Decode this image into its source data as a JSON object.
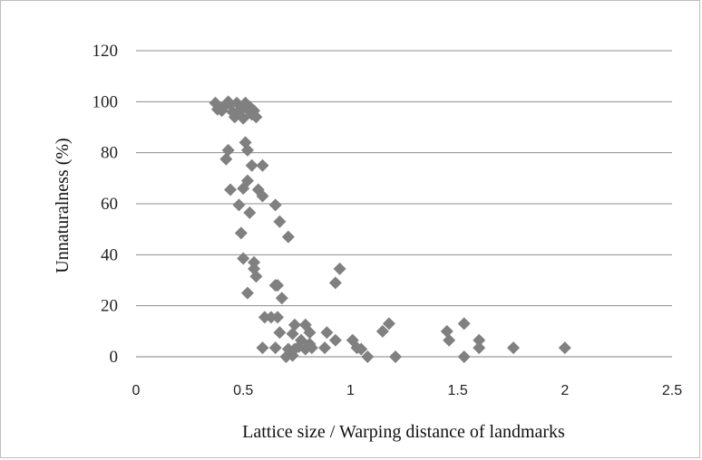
{
  "chart_data": {
    "type": "scatter",
    "title": "",
    "xlabel": "Lattice size / Warping distance of landmarks",
    "ylabel": "Unnaturalness (%)",
    "xlim": [
      0,
      2.5
    ],
    "ylim": [
      0,
      120
    ],
    "x_ticks": [
      "0",
      "0.5",
      "1",
      "1.5",
      "2",
      "2.5"
    ],
    "y_ticks": [
      "0",
      "20",
      "40",
      "60",
      "80",
      "100",
      "120"
    ],
    "grid": "horizontal",
    "legend": "none",
    "marker": "diamond",
    "marker_color": "#808080",
    "points": [
      {
        "x": 0.37,
        "y": 99.5
      },
      {
        "x": 0.38,
        "y": 97
      },
      {
        "x": 0.4,
        "y": 96.5
      },
      {
        "x": 0.41,
        "y": 98
      },
      {
        "x": 0.42,
        "y": 99
      },
      {
        "x": 0.43,
        "y": 100
      },
      {
        "x": 0.44,
        "y": 99
      },
      {
        "x": 0.45,
        "y": 96
      },
      {
        "x": 0.46,
        "y": 94
      },
      {
        "x": 0.47,
        "y": 99.5
      },
      {
        "x": 0.48,
        "y": 96
      },
      {
        "x": 0.49,
        "y": 97
      },
      {
        "x": 0.5,
        "y": 93.5
      },
      {
        "x": 0.51,
        "y": 99.5
      },
      {
        "x": 0.52,
        "y": 97
      },
      {
        "x": 0.53,
        "y": 98
      },
      {
        "x": 0.54,
        "y": 95
      },
      {
        "x": 0.55,
        "y": 96.5
      },
      {
        "x": 0.56,
        "y": 94
      },
      {
        "x": 0.51,
        "y": 84
      },
      {
        "x": 0.52,
        "y": 81
      },
      {
        "x": 0.43,
        "y": 81
      },
      {
        "x": 0.42,
        "y": 77.5
      },
      {
        "x": 0.54,
        "y": 75
      },
      {
        "x": 0.59,
        "y": 75
      },
      {
        "x": 0.52,
        "y": 69
      },
      {
        "x": 0.5,
        "y": 66
      },
      {
        "x": 0.44,
        "y": 65.5
      },
      {
        "x": 0.57,
        "y": 65.5
      },
      {
        "x": 0.59,
        "y": 63
      },
      {
        "x": 0.65,
        "y": 59.5
      },
      {
        "x": 0.48,
        "y": 59.5
      },
      {
        "x": 0.53,
        "y": 56.5
      },
      {
        "x": 0.67,
        "y": 53
      },
      {
        "x": 0.49,
        "y": 48.5
      },
      {
        "x": 0.71,
        "y": 47
      },
      {
        "x": 0.5,
        "y": 38.5
      },
      {
        "x": 0.55,
        "y": 37
      },
      {
        "x": 0.55,
        "y": 34.5
      },
      {
        "x": 0.56,
        "y": 31.5
      },
      {
        "x": 0.52,
        "y": 25
      },
      {
        "x": 0.65,
        "y": 28
      },
      {
        "x": 0.66,
        "y": 28
      },
      {
        "x": 0.68,
        "y": 23
      },
      {
        "x": 0.6,
        "y": 15.5
      },
      {
        "x": 0.63,
        "y": 15.5
      },
      {
        "x": 0.66,
        "y": 15.5
      },
      {
        "x": 0.95,
        "y": 34.5
      },
      {
        "x": 0.93,
        "y": 29
      },
      {
        "x": 0.74,
        "y": 12.5
      },
      {
        "x": 0.79,
        "y": 12.5
      },
      {
        "x": 0.81,
        "y": 9.5
      },
      {
        "x": 0.89,
        "y": 9.5
      },
      {
        "x": 0.67,
        "y": 9.5
      },
      {
        "x": 0.73,
        "y": 9
      },
      {
        "x": 0.77,
        "y": 6.5
      },
      {
        "x": 0.76,
        "y": 4
      },
      {
        "x": 0.81,
        "y": 5
      },
      {
        "x": 0.71,
        "y": 3
      },
      {
        "x": 0.74,
        "y": 3
      },
      {
        "x": 0.79,
        "y": 3
      },
      {
        "x": 0.59,
        "y": 3.5
      },
      {
        "x": 0.65,
        "y": 3.5
      },
      {
        "x": 0.7,
        "y": 0
      },
      {
        "x": 0.73,
        "y": 0.5
      },
      {
        "x": 0.82,
        "y": 3.5
      },
      {
        "x": 0.88,
        "y": 3.5
      },
      {
        "x": 0.93,
        "y": 6.5
      },
      {
        "x": 1.01,
        "y": 6.5
      },
      {
        "x": 1.03,
        "y": 3.5
      },
      {
        "x": 1.05,
        "y": 3
      },
      {
        "x": 1.08,
        "y": 0
      },
      {
        "x": 1.15,
        "y": 10
      },
      {
        "x": 1.18,
        "y": 13
      },
      {
        "x": 1.21,
        "y": 0
      },
      {
        "x": 1.45,
        "y": 10
      },
      {
        "x": 1.46,
        "y": 6.5
      },
      {
        "x": 1.53,
        "y": 13
      },
      {
        "x": 1.53,
        "y": 0
      },
      {
        "x": 1.6,
        "y": 6.5
      },
      {
        "x": 1.6,
        "y": 3.5
      },
      {
        "x": 1.76,
        "y": 3.5
      },
      {
        "x": 2.0,
        "y": 3.5
      }
    ]
  }
}
